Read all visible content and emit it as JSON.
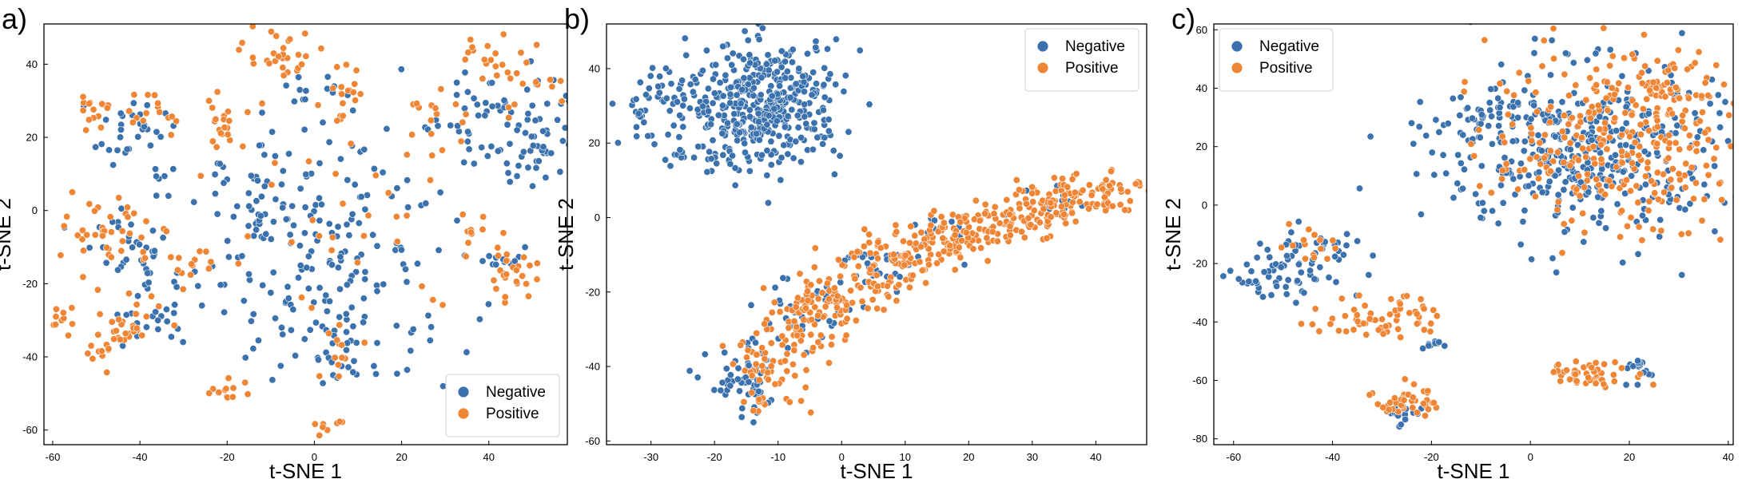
{
  "colors": {
    "negative": "#3b72ad",
    "positive": "#ef8636"
  },
  "chart_data": [
    {
      "type": "scatter",
      "panel_label": "a)",
      "xlabel": "t-SNE 1",
      "ylabel": "t-SNE 2",
      "xlim": [
        -62,
        58
      ],
      "ylim": [
        -64,
        51
      ],
      "xticks": [
        -60,
        -40,
        -20,
        0,
        20,
        40
      ],
      "yticks": [
        -60,
        -40,
        -20,
        0,
        20,
        40
      ],
      "legend": {
        "placement": "lower-right",
        "entries": [
          "Negative",
          "Positive"
        ]
      },
      "series": [
        {
          "name": "Negative",
          "color": "#3b72ad",
          "clusters": [
            [
              5,
              -12,
              15,
              17,
              180
            ],
            [
              44,
              26,
              8,
              8,
              70
            ],
            [
              51,
              14,
              3,
              5,
              20
            ],
            [
              -42,
              22,
              4,
              4,
              30
            ],
            [
              -37,
              -27,
              5,
              5,
              30
            ],
            [
              -43,
              -10,
              6,
              6,
              30
            ],
            [
              8,
              -40,
              5,
              5,
              20
            ],
            [
              -2,
              32,
              4,
              4,
              15
            ],
            [
              -18,
              3,
              7,
              6,
              20
            ],
            [
              -9,
              -28,
              4,
              5,
              10
            ],
            [
              -36,
              8,
              2,
              2,
              5
            ],
            [
              43,
              -13,
              4,
              3,
              12
            ],
            [
              -11,
              0,
              4,
              6,
              10
            ]
          ]
        },
        {
          "name": "Positive",
          "color": "#ef8636",
          "clusters": [
            [
              -45,
              -33,
              5,
              5,
              40
            ],
            [
              -47,
              -6,
              5,
              5,
              40
            ],
            [
              -50,
              28,
              2,
              2,
              15
            ],
            [
              -37,
              26,
              3,
              3,
              15
            ],
            [
              -20,
              24,
              3,
              4,
              20
            ],
            [
              -8,
              42,
              4,
              5,
              30
            ],
            [
              6,
              30,
              3,
              5,
              20
            ],
            [
              42,
              37,
              7,
              6,
              35
            ],
            [
              45,
              -18,
              3,
              3,
              25
            ],
            [
              -58,
              -29,
              1.5,
              2,
              10
            ],
            [
              -20,
              -50,
              3,
              2,
              12
            ],
            [
              3,
              -59,
              2,
              1.5,
              8
            ],
            [
              -28,
              -14,
              5,
              4,
              15
            ],
            [
              6,
              -38,
              3,
              3,
              12
            ],
            [
              28,
              25,
              3,
              3,
              12
            ],
            [
              10,
              -2,
              15,
              15,
              30
            ],
            [
              37,
              -7,
              3,
              3,
              10
            ]
          ]
        }
      ]
    },
    {
      "type": "scatter",
      "panel_label": "b)",
      "xlabel": "t-SNE 1",
      "ylabel": "t-SNE 2",
      "xlim": [
        -37,
        48
      ],
      "ylim": [
        -61,
        52
      ],
      "xticks": [
        -30,
        -20,
        -10,
        0,
        10,
        20,
        30,
        40
      ],
      "yticks": [
        -60,
        -40,
        -20,
        0,
        20,
        40
      ],
      "legend": {
        "placement": "upper-right",
        "entries": [
          "Negative",
          "Positive"
        ]
      },
      "series": [
        {
          "name": "Negative",
          "color": "#3b72ad",
          "clusters": [
            [
              -12,
              31,
              6,
              8,
              420
            ],
            [
              -31,
              28,
              2,
              4,
              30
            ],
            [
              -27,
              36,
              2,
              3,
              15
            ],
            [
              -25,
              16,
              2,
              2,
              10
            ],
            [
              -15,
              -45,
              3,
              5,
              60
            ],
            [
              -5,
              -25,
              4,
              5,
              40
            ],
            [
              5,
              -13,
              4,
              4,
              30
            ],
            [
              17,
              -5,
              3,
              3,
              15
            ],
            [
              30,
              4,
              4,
              3,
              12
            ],
            [
              -18,
              16,
              3,
              2,
              20
            ]
          ]
        },
        {
          "name": "Positive",
          "color": "#ef8636",
          "clusters": [
            [
              -12,
              -42,
              3,
              5,
              50
            ],
            [
              -6,
              -30,
              3,
              5,
              60
            ],
            [
              0,
              -20,
              4,
              4,
              70
            ],
            [
              8,
              -13,
              4,
              4,
              70
            ],
            [
              16,
              -7,
              4,
              3,
              70
            ],
            [
              24,
              -2,
              4,
              3,
              70
            ],
            [
              32,
              3,
              4,
              3,
              70
            ],
            [
              40,
              8,
              4,
              3,
              60
            ]
          ]
        }
      ]
    },
    {
      "type": "scatter",
      "panel_label": "c)",
      "xlabel": "t-SNE 1",
      "ylabel": "t-SNE 2",
      "xlim": [
        -64,
        41
      ],
      "ylim": [
        -82,
        62
      ],
      "xticks": [
        -60,
        -40,
        -20,
        0,
        20,
        40
      ],
      "yticks": [
        -80,
        -60,
        -40,
        -20,
        0,
        20,
        40,
        60
      ],
      "legend": {
        "placement": "upper-left",
        "entries": [
          "Negative",
          "Positive"
        ]
      },
      "series": [
        {
          "name": "Negative",
          "color": "#3b72ad",
          "clusters": [
            [
              10,
              18,
              14,
              15,
              400
            ],
            [
              -46,
              -20,
              6,
              6,
              70
            ],
            [
              -57,
              -24,
              2,
              3,
              15
            ],
            [
              22,
              -56,
              2,
              2,
              15
            ],
            [
              -25,
              -72,
              3,
              2,
              15
            ],
            [
              -20,
              -48,
              2,
              1,
              10
            ],
            [
              -10,
              30,
              5,
              5,
              30
            ]
          ]
        },
        {
          "name": "Positive",
          "color": "#ef8636",
          "clusters": [
            [
              18,
              22,
              13,
              15,
              300
            ],
            [
              -30,
              -38,
              6,
              4,
              60
            ],
            [
              -25,
              -67,
              3,
              3,
              40
            ],
            [
              13,
              -58,
              5,
              2,
              50
            ],
            [
              -45,
              -14,
              4,
              4,
              15
            ],
            [
              28,
              40,
              5,
              6,
              40
            ]
          ]
        }
      ]
    }
  ]
}
